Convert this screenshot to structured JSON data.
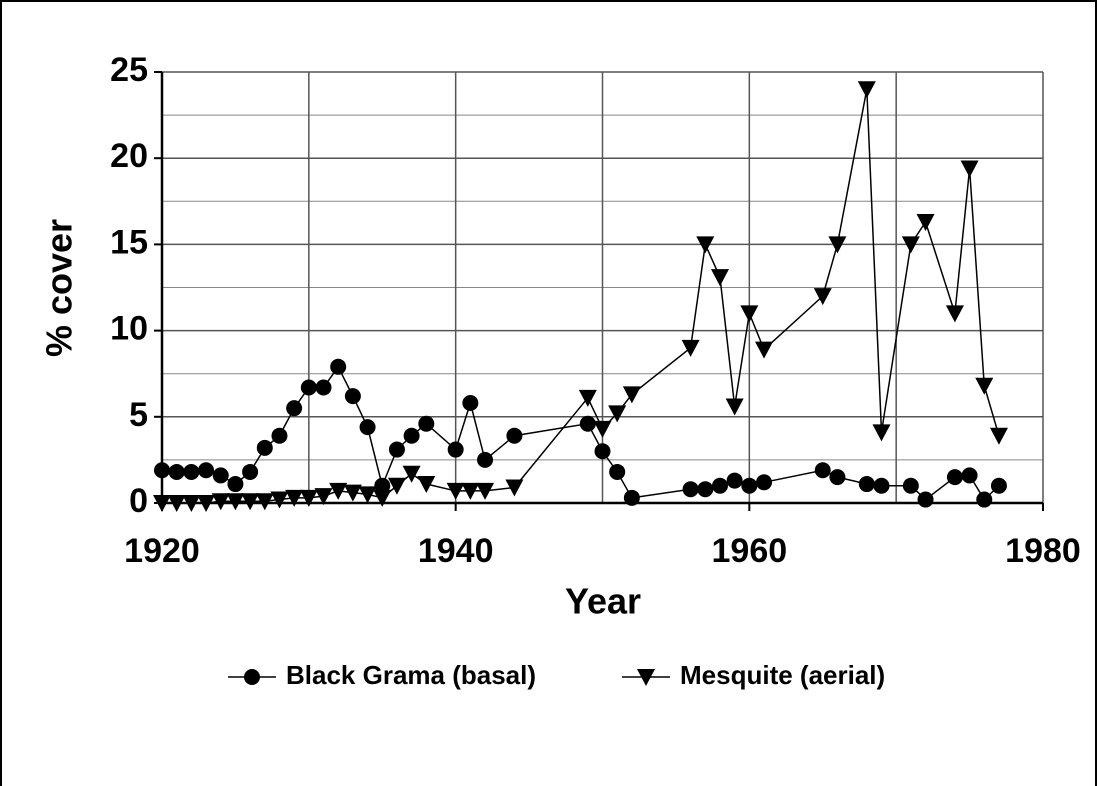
{
  "chart_data": {
    "type": "line",
    "xlabel": "Year",
    "ylabel": "% cover",
    "xlim": [
      1920,
      1980
    ],
    "xticks": [
      1920,
      1940,
      1960,
      1980
    ],
    "xminor": [
      1930,
      1950,
      1970
    ],
    "ylim": [
      0,
      25
    ],
    "yticks": [
      0,
      5,
      10,
      15,
      20,
      25
    ],
    "yminor": [
      2.5,
      7.5,
      12.5,
      17.5,
      22.5
    ],
    "grid": true,
    "legend": "bottom",
    "series": [
      {
        "name": "Black Grama (basal)",
        "color": "#000000",
        "marker": "circle",
        "x": [
          1920,
          1921,
          1922,
          1923,
          1924,
          1925,
          1926,
          1927,
          1928,
          1929,
          1930,
          1931,
          1932,
          1933,
          1934,
          1935,
          1936,
          1937,
          1938,
          1940,
          1941,
          1942,
          1944,
          1949,
          1950,
          1951,
          1952,
          1956,
          1957,
          1958,
          1959,
          1960,
          1961,
          1965,
          1966,
          1968,
          1969,
          1971,
          1972,
          1974,
          1975,
          1976,
          1977
        ],
        "values": [
          1.9,
          1.8,
          1.8,
          1.9,
          1.6,
          1.1,
          1.8,
          3.2,
          3.9,
          5.5,
          6.7,
          6.7,
          7.9,
          6.2,
          4.4,
          1.0,
          3.1,
          3.9,
          4.6,
          3.1,
          5.8,
          2.5,
          3.9,
          4.6,
          3.0,
          1.8,
          0.3,
          0.8,
          0.8,
          1.0,
          1.3,
          1.0,
          1.2,
          1.9,
          1.5,
          1.1,
          1.0,
          1.0,
          0.2,
          1.5,
          1.6,
          0.2,
          1.0
        ]
      },
      {
        "name": "Mesquite (aerial)",
        "color": "#000000",
        "marker": "triangle-down",
        "x": [
          1920,
          1921,
          1922,
          1923,
          1924,
          1925,
          1926,
          1927,
          1928,
          1929,
          1930,
          1931,
          1932,
          1933,
          1934,
          1935,
          1936,
          1937,
          1938,
          1940,
          1941,
          1942,
          1944,
          1949,
          1950,
          1951,
          1952,
          1956,
          1957,
          1958,
          1959,
          1960,
          1961,
          1965,
          1966,
          1968,
          1969,
          1971,
          1972,
          1974,
          1975,
          1976,
          1977
        ],
        "values": [
          0,
          0,
          0,
          0,
          0.1,
          0.1,
          0.1,
          0.1,
          0.2,
          0.3,
          0.3,
          0.4,
          0.7,
          0.6,
          0.5,
          0.3,
          1.0,
          1.7,
          1.1,
          0.7,
          0.7,
          0.7,
          0.9,
          6.1,
          4.3,
          5.2,
          6.3,
          9.0,
          15.0,
          13.1,
          5.6,
          11.0,
          8.9,
          12.0,
          15.0,
          24.0,
          4.1,
          15.0,
          16.3,
          11.0,
          19.4,
          6.8,
          3.9
        ]
      }
    ]
  }
}
